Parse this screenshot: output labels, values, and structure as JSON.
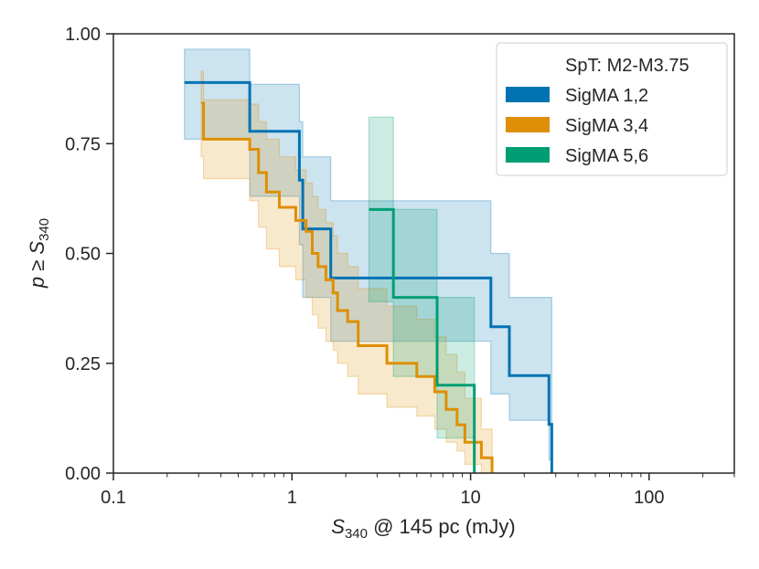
{
  "chart_data": {
    "type": "step",
    "title": "",
    "xlabel": "S340 @ 145 pc (mJy)",
    "ylabel": "p ≥ S340",
    "xscale": "log",
    "xlim": [
      0.1,
      300
    ],
    "ylim": [
      0,
      1
    ],
    "x_ticks": [
      {
        "value": 0.1,
        "label": "0.1"
      },
      {
        "value": 1,
        "label": "1"
      },
      {
        "value": 10,
        "label": "10"
      },
      {
        "value": 100,
        "label": "100"
      }
    ],
    "y_ticks": [
      {
        "value": 0,
        "label": "0.00"
      },
      {
        "value": 0.25,
        "label": "0.25"
      },
      {
        "value": 0.5,
        "label": "0.50"
      },
      {
        "value": 0.75,
        "label": "0.75"
      },
      {
        "value": 1,
        "label": "1.00"
      }
    ],
    "legend": {
      "title": "SpT: M2-M3.75",
      "placement": "top-right"
    },
    "series": [
      {
        "name": "SigMA 1,2",
        "color": "#0173b2",
        "steps": [
          {
            "x": 0.25,
            "y": 0.889,
            "lo": 0.76,
            "hi": 0.965
          },
          {
            "x": 0.58,
            "y": 0.778,
            "lo": 0.63,
            "hi": 0.885
          },
          {
            "x": 1.1,
            "y": 0.667,
            "lo": 0.52,
            "hi": 0.8
          },
          {
            "x": 1.15,
            "y": 0.556,
            "lo": 0.4,
            "hi": 0.72
          },
          {
            "x": 1.65,
            "y": 0.444,
            "lo": 0.3,
            "hi": 0.62
          },
          {
            "x": 13.0,
            "y": 0.333,
            "lo": 0.18,
            "hi": 0.5
          },
          {
            "x": 16.5,
            "y": 0.222,
            "lo": 0.12,
            "hi": 0.4
          },
          {
            "x": 27.5,
            "y": 0.111,
            "lo": 0.03,
            "hi": 0.4
          },
          {
            "x": 28.5,
            "y": 0.0,
            "lo": 0.0,
            "hi": 0.4
          }
        ]
      },
      {
        "name": "SigMA 3,4",
        "color": "#de8f05",
        "steps": [
          {
            "x": 0.31,
            "y": 0.842,
            "lo": 0.72,
            "hi": 0.915
          },
          {
            "x": 0.32,
            "y": 0.76,
            "lo": 0.67,
            "hi": 0.85
          },
          {
            "x": 0.58,
            "y": 0.737,
            "lo": 0.62,
            "hi": 0.84
          },
          {
            "x": 0.65,
            "y": 0.684,
            "lo": 0.56,
            "hi": 0.8
          },
          {
            "x": 0.72,
            "y": 0.64,
            "lo": 0.51,
            "hi": 0.76
          },
          {
            "x": 0.85,
            "y": 0.605,
            "lo": 0.47,
            "hi": 0.72
          },
          {
            "x": 1.05,
            "y": 0.575,
            "lo": 0.44,
            "hi": 0.69
          },
          {
            "x": 1.2,
            "y": 0.55,
            "lo": 0.4,
            "hi": 0.66
          },
          {
            "x": 1.3,
            "y": 0.5,
            "lo": 0.36,
            "hi": 0.63
          },
          {
            "x": 1.4,
            "y": 0.47,
            "lo": 0.33,
            "hi": 0.6
          },
          {
            "x": 1.55,
            "y": 0.44,
            "lo": 0.3,
            "hi": 0.57
          },
          {
            "x": 1.7,
            "y": 0.41,
            "lo": 0.28,
            "hi": 0.54
          },
          {
            "x": 1.8,
            "y": 0.37,
            "lo": 0.25,
            "hi": 0.5
          },
          {
            "x": 2.05,
            "y": 0.345,
            "lo": 0.22,
            "hi": 0.47
          },
          {
            "x": 2.35,
            "y": 0.29,
            "lo": 0.18,
            "hi": 0.42
          },
          {
            "x": 3.4,
            "y": 0.25,
            "lo": 0.15,
            "hi": 0.38
          },
          {
            "x": 5.0,
            "y": 0.22,
            "lo": 0.13,
            "hi": 0.35
          },
          {
            "x": 6.3,
            "y": 0.185,
            "lo": 0.1,
            "hi": 0.31
          },
          {
            "x": 7.3,
            "y": 0.145,
            "lo": 0.07,
            "hi": 0.27
          },
          {
            "x": 8.4,
            "y": 0.11,
            "lo": 0.05,
            "hi": 0.23
          },
          {
            "x": 9.3,
            "y": 0.07,
            "lo": 0.02,
            "hi": 0.17
          },
          {
            "x": 11.5,
            "y": 0.035,
            "lo": 0.0,
            "hi": 0.1
          },
          {
            "x": 13.2,
            "y": 0.0,
            "lo": 0.0,
            "hi": 0.1
          }
        ]
      },
      {
        "name": "SigMA 5,6",
        "color": "#029e73",
        "steps": [
          {
            "x": 2.7,
            "y": 0.6,
            "lo": 0.39,
            "hi": 0.81
          },
          {
            "x": 3.7,
            "y": 0.4,
            "lo": 0.22,
            "hi": 0.6
          },
          {
            "x": 6.5,
            "y": 0.2,
            "lo": 0.08,
            "hi": 0.4
          },
          {
            "x": 10.5,
            "y": 0.0,
            "lo": 0.0,
            "hi": 0.4
          }
        ]
      }
    ]
  }
}
